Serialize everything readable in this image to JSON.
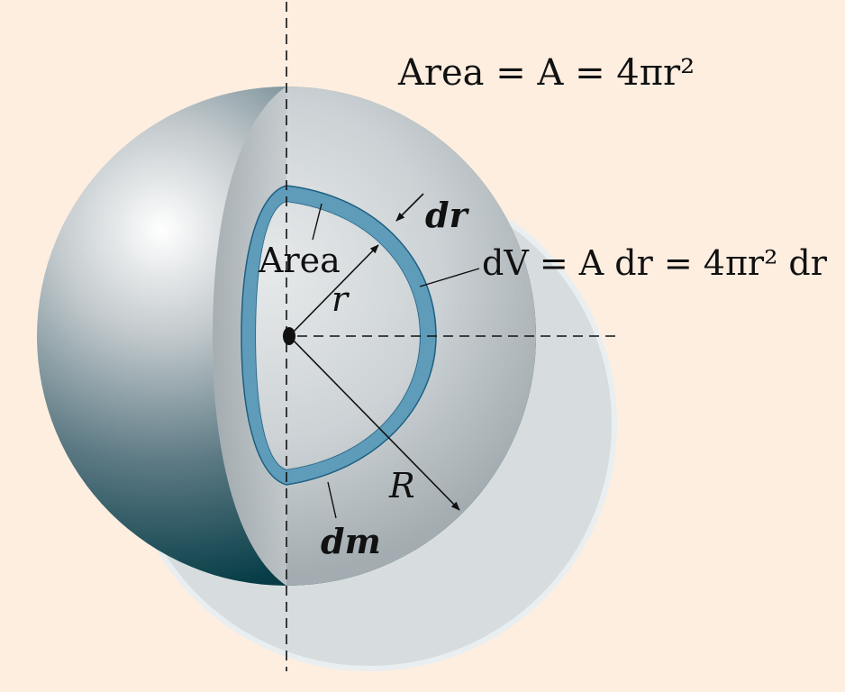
{
  "labels": {
    "area_formula": "Area = A = 4πr²",
    "dr": "dr",
    "area": "Area",
    "r": "r",
    "dv_formula": "dV = A dr = 4πr² dr",
    "R": "R",
    "dm": "dm"
  },
  "colors": {
    "background": "#fdeee0",
    "shell": "#5e9cba",
    "shell_stroke": "#1f5f80",
    "sphere_light": "#f2f4f5",
    "sphere_dark": "#03363f",
    "cut_face": "#c9cfd2",
    "ghost_hemisphere": "#d6dcdd"
  }
}
